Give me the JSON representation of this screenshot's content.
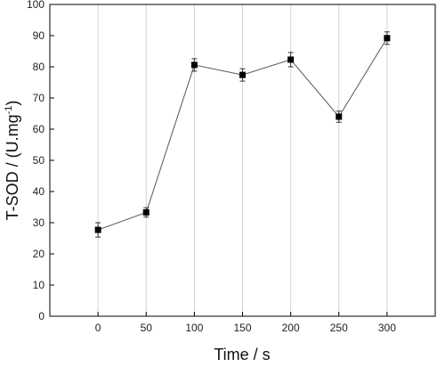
{
  "chart_data": {
    "type": "line",
    "xlabel": "Time / s",
    "ylabel_main": "T-SOD / (U.mg",
    "ylabel_sup": "-1",
    "ylabel_close": ")",
    "x": [
      0,
      50,
      100,
      150,
      200,
      250,
      300
    ],
    "y": [
      27.7,
      33.3,
      80.6,
      77.4,
      82.3,
      64.0,
      89.2
    ],
    "error": [
      2.3,
      1.5,
      2.0,
      2.0,
      2.3,
      1.8,
      2.0
    ],
    "xticks": [
      "0",
      "50",
      "100",
      "150",
      "200",
      "250",
      "300"
    ],
    "yticks": [
      "0",
      "10",
      "20",
      "30",
      "40",
      "50",
      "60",
      "70",
      "80",
      "90",
      "100"
    ],
    "xlim": [
      -50,
      350
    ],
    "ylim": [
      0,
      100
    ],
    "grid": "vertical",
    "marker": "square",
    "line_color": "#555555",
    "marker_color": "#000000"
  }
}
